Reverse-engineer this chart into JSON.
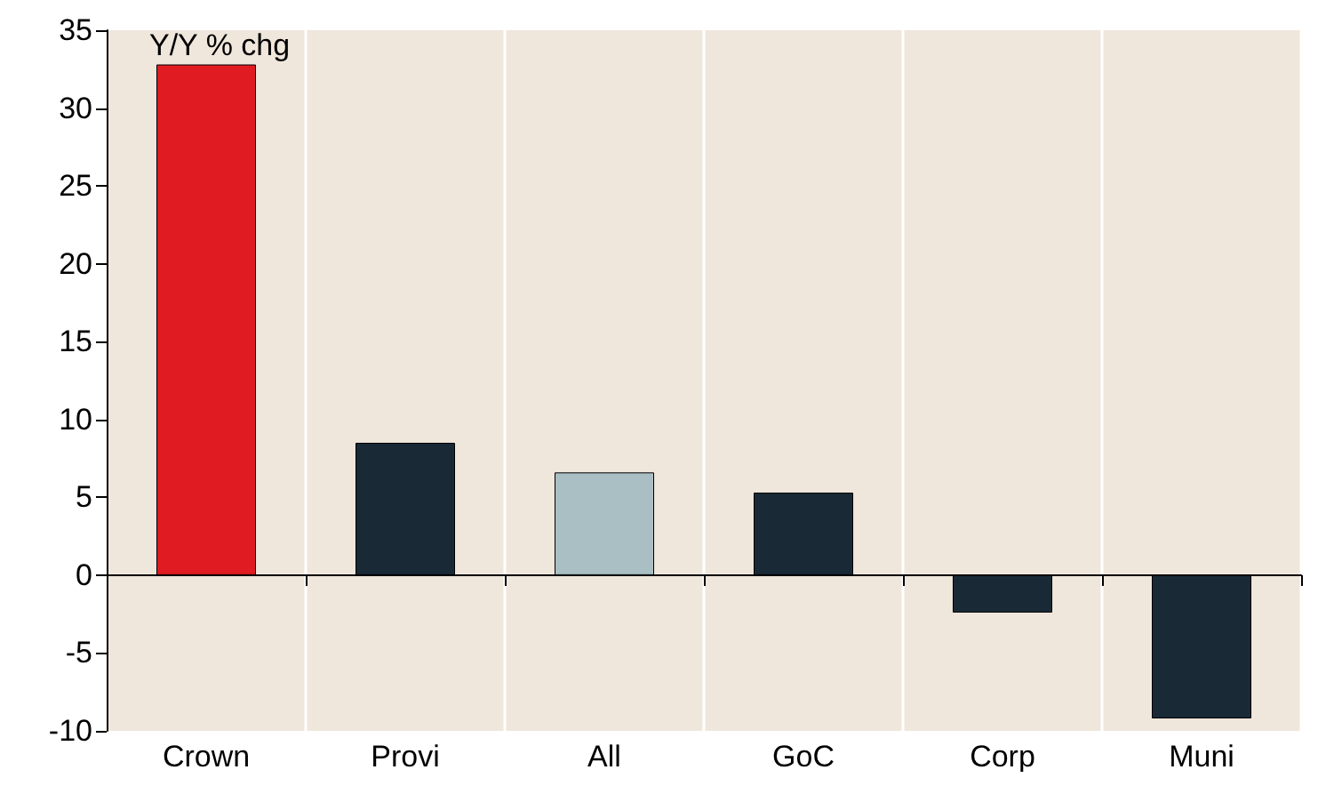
{
  "chart_data": {
    "type": "bar",
    "categories": [
      "Crown",
      "Provi",
      "All",
      "GoC",
      "Corp",
      "Muni"
    ],
    "values": [
      32.8,
      8.5,
      6.6,
      5.3,
      -2.4,
      -9.2
    ],
    "colors": [
      "#e01b22",
      "#192a36",
      "#a9bfc4",
      "#192a36",
      "#192a36",
      "#192a36"
    ],
    "ylim": [
      -10,
      35
    ],
    "yticks": [
      -10,
      -5,
      0,
      5,
      10,
      15,
      20,
      25,
      30,
      35
    ],
    "grid": "x",
    "annotations": [
      "Y/Y % chg"
    ]
  }
}
